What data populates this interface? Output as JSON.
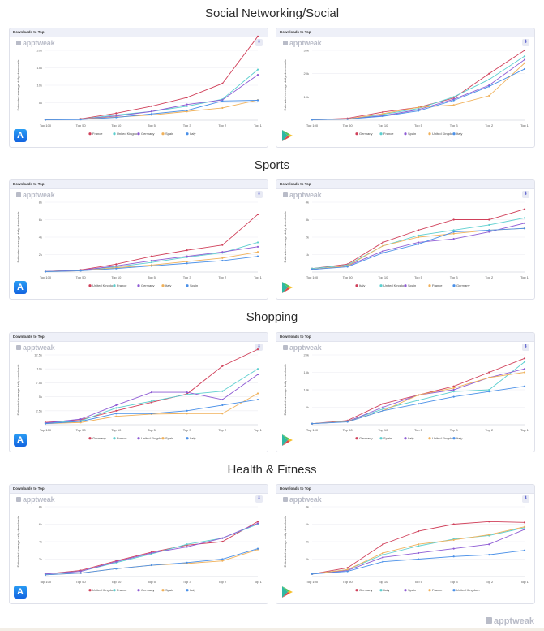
{
  "header_label": "Downloads to Top",
  "brand": "apptweak",
  "footer_brand": "apptweak",
  "y_label": "Estimated average daily downloads",
  "categories": [
    "Top 100",
    "Top 50",
    "Top 10",
    "Top 5",
    "Top 3",
    "Top 2",
    "Top 1"
  ],
  "colors": {
    "red": "#d0405a",
    "teal": "#5ccfcf",
    "purple": "#8e5bd4",
    "orange": "#f0b15a",
    "blue": "#4a90e8"
  },
  "sections": [
    {
      "title": "Social Networking/Social"
    },
    {
      "title": "Sports"
    },
    {
      "title": "Shopping"
    },
    {
      "title": "Health & Fitness"
    }
  ],
  "chart_data": [
    {
      "type": "line",
      "store": "App Store",
      "title": "Downloads to Top",
      "ylabel": "Estimated average daily downloads",
      "yticks": [
        "5k",
        "10k",
        "15k",
        "20k"
      ],
      "ymax": 20000,
      "categories": [
        "Top 100",
        "Top 50",
        "Top 10",
        "Top 5",
        "Top 3",
        "Top 2",
        "Top 1"
      ],
      "series": [
        {
          "name": "France",
          "color": "red",
          "values": [
            200,
            400,
            2000,
            4000,
            6500,
            10500,
            24000
          ]
        },
        {
          "name": "United Kingdom",
          "color": "teal",
          "values": [
            200,
            300,
            1500,
            2500,
            4000,
            6000,
            14500
          ]
        },
        {
          "name": "Germany",
          "color": "purple",
          "values": [
            200,
            300,
            1200,
            2500,
            4500,
            5800,
            13000
          ]
        },
        {
          "name": "Spain",
          "color": "orange",
          "values": [
            100,
            300,
            900,
            1500,
            2500,
            3500,
            5800
          ]
        },
        {
          "name": "Italy",
          "color": "blue",
          "values": [
            100,
            200,
            800,
            1800,
            2800,
            5500,
            5700
          ]
        }
      ]
    },
    {
      "type": "line",
      "store": "Google Play",
      "title": "Downloads to Top",
      "ylabel": "Estimated average daily downloads",
      "yticks": [
        "10k",
        "20k",
        "30k"
      ],
      "ymax": 30000,
      "categories": [
        "Top 100",
        "Top 50",
        "Top 10",
        "Top 5",
        "Top 3",
        "Top 2",
        "Top 1"
      ],
      "series": [
        {
          "name": "Germany",
          "color": "red",
          "values": [
            200,
            800,
            3500,
            5500,
            9500,
            20000,
            30000
          ]
        },
        {
          "name": "France",
          "color": "teal",
          "values": [
            200,
            500,
            2500,
            5000,
            10000,
            17500,
            27500
          ]
        },
        {
          "name": "Spain",
          "color": "purple",
          "values": [
            200,
            500,
            2000,
            4500,
            9000,
            15000,
            26000
          ]
        },
        {
          "name": "United Kingdom",
          "color": "orange",
          "values": [
            200,
            500,
            2800,
            5500,
            6500,
            10500,
            24500
          ]
        },
        {
          "name": "Italy",
          "color": "blue",
          "values": [
            200,
            500,
            1700,
            4000,
            8500,
            14500,
            22000
          ]
        }
      ]
    },
    {
      "type": "line",
      "store": "App Store",
      "title": "Downloads to Top",
      "ylabel": "Estimated average daily downloads",
      "yticks": [
        "2k",
        "4k",
        "6k",
        "8k"
      ],
      "ymax": 8000,
      "categories": [
        "Top 100",
        "Top 50",
        "Top 10",
        "Top 5",
        "Top 3",
        "Top 2",
        "Top 1"
      ],
      "series": [
        {
          "name": "United Kingdom",
          "color": "red",
          "values": [
            60,
            250,
            900,
            1800,
            2500,
            3100,
            6600
          ]
        },
        {
          "name": "France",
          "color": "teal",
          "values": [
            60,
            200,
            600,
            1100,
            1700,
            2200,
            3400
          ]
        },
        {
          "name": "Germany",
          "color": "purple",
          "values": [
            60,
            200,
            700,
            1300,
            1800,
            2300,
            2900
          ]
        },
        {
          "name": "Italy",
          "color": "orange",
          "values": [
            40,
            150,
            500,
            800,
            1200,
            1600,
            2300
          ]
        },
        {
          "name": "Spain",
          "color": "blue",
          "values": [
            40,
            150,
            400,
            700,
            1000,
            1300,
            1800
          ]
        }
      ]
    },
    {
      "type": "line",
      "store": "Google Play",
      "title": "Downloads to Top",
      "ylabel": "Estimated average daily downloads",
      "yticks": [
        "1k",
        "2k",
        "3k",
        "4k"
      ],
      "ymax": 4000,
      "categories": [
        "Top 100",
        "Top 50",
        "Top 10",
        "Top 5",
        "Top 3",
        "Top 2",
        "Top 1"
      ],
      "series": [
        {
          "name": "Italy",
          "color": "red",
          "values": [
            200,
            450,
            1700,
            2400,
            3000,
            3000,
            3600
          ]
        },
        {
          "name": "United Kingdom",
          "color": "teal",
          "values": [
            200,
            400,
            1500,
            2100,
            2400,
            2700,
            3100
          ]
        },
        {
          "name": "Spain",
          "color": "purple",
          "values": [
            150,
            350,
            1200,
            1700,
            1900,
            2300,
            2800
          ]
        },
        {
          "name": "France",
          "color": "orange",
          "values": [
            150,
            350,
            1500,
            2000,
            2200,
            2400,
            2500
          ]
        },
        {
          "name": "Germany",
          "color": "blue",
          "values": [
            150,
            300,
            1100,
            1600,
            2300,
            2400,
            2500
          ]
        }
      ]
    },
    {
      "type": "line",
      "store": "App Store",
      "title": "Downloads to Top",
      "ylabel": "Estimated average daily downloads",
      "yticks": [
        "2.5k",
        "5k",
        "7.5k",
        "10k",
        "12.5k"
      ],
      "ymax": 12500,
      "categories": [
        "Top 100",
        "Top 50",
        "Top 10",
        "Top 5",
        "Top 3",
        "Top 2",
        "Top 1"
      ],
      "series": [
        {
          "name": "Germany",
          "color": "red",
          "values": [
            400,
            900,
            2500,
            4000,
            5500,
            10500,
            13500
          ]
        },
        {
          "name": "France",
          "color": "teal",
          "values": [
            300,
            700,
            3000,
            4200,
            5400,
            6000,
            10000
          ]
        },
        {
          "name": "United Kingdom",
          "color": "purple",
          "values": [
            300,
            1000,
            3500,
            5800,
            5800,
            4500,
            9000
          ]
        },
        {
          "name": "Spain",
          "color": "orange",
          "values": [
            200,
            400,
            1500,
            1900,
            2000,
            2000,
            5600
          ]
        },
        {
          "name": "Italy",
          "color": "blue",
          "values": [
            200,
            600,
            2000,
            2000,
            2500,
            3500,
            4500
          ]
        }
      ]
    },
    {
      "type": "line",
      "store": "Google Play",
      "title": "Downloads to Top",
      "ylabel": "Estimated average daily downloads",
      "yticks": [
        "5k",
        "10k",
        "15k",
        "20k"
      ],
      "ymax": 20000,
      "categories": [
        "Top 100",
        "Top 50",
        "Top 10",
        "Top 5",
        "Top 3",
        "Top 2",
        "Top 1"
      ],
      "series": [
        {
          "name": "Germany",
          "color": "red",
          "values": [
            300,
            1200,
            6000,
            8500,
            11000,
            15000,
            19000
          ]
        },
        {
          "name": "Spain",
          "color": "teal",
          "values": [
            300,
            1000,
            4500,
            7000,
            9500,
            10000,
            18000
          ]
        },
        {
          "name": "Italy",
          "color": "purple",
          "values": [
            300,
            900,
            5000,
            8500,
            10000,
            13500,
            16000
          ]
        },
        {
          "name": "United Kingdom",
          "color": "orange",
          "values": [
            300,
            900,
            4000,
            8500,
            10500,
            13500,
            15000
          ]
        },
        {
          "name": "Italy",
          "color": "blue",
          "values": [
            300,
            800,
            4000,
            6000,
            8000,
            9500,
            11000
          ]
        }
      ]
    },
    {
      "type": "line",
      "store": "App Store",
      "title": "Downloads to Top",
      "ylabel": "Estimated average daily downloads",
      "yticks": [
        "2k",
        "4k",
        "6k",
        "8k"
      ],
      "ymax": 8000,
      "categories": [
        "Top 100",
        "Top 50",
        "Top 10",
        "Top 5",
        "Top 3",
        "Top 2",
        "Top 1"
      ],
      "series": [
        {
          "name": "United Kingdom",
          "color": "red",
          "values": [
            300,
            700,
            1800,
            2800,
            3600,
            4000,
            6300
          ]
        },
        {
          "name": "France",
          "color": "teal",
          "values": [
            300,
            600,
            1600,
            2600,
            3700,
            4400,
            6000
          ]
        },
        {
          "name": "Germany",
          "color": "purple",
          "values": [
            300,
            600,
            1700,
            2700,
            3400,
            4400,
            6100
          ]
        },
        {
          "name": "Spain",
          "color": "orange",
          "values": [
            200,
            400,
            900,
            1300,
            1500,
            1800,
            3100
          ]
        },
        {
          "name": "Italy",
          "color": "blue",
          "values": [
            200,
            400,
            900,
            1300,
            1600,
            2000,
            3200
          ]
        }
      ]
    },
    {
      "type": "line",
      "store": "Google Play",
      "title": "Downloads to Top",
      "ylabel": "Estimated average daily downloads",
      "yticks": [
        "2k",
        "4k",
        "6k",
        "8k"
      ],
      "ymax": 8000,
      "categories": [
        "Top 100",
        "Top 50",
        "Top 10",
        "Top 5",
        "Top 3",
        "Top 2",
        "Top 1"
      ],
      "series": [
        {
          "name": "Germany",
          "color": "red",
          "values": [
            300,
            1000,
            3700,
            5200,
            6000,
            6300,
            6200
          ]
        },
        {
          "name": "Italy",
          "color": "teal",
          "values": [
            300,
            800,
            2500,
            3500,
            4300,
            4700,
            5600
          ]
        },
        {
          "name": "Spain",
          "color": "purple",
          "values": [
            300,
            700,
            2200,
            2700,
            3200,
            3700,
            5400
          ]
        },
        {
          "name": "France",
          "color": "orange",
          "values": [
            300,
            800,
            2700,
            3700,
            4200,
            4800,
            5700
          ]
        },
        {
          "name": "United Kingdom",
          "color": "blue",
          "values": [
            300,
            600,
            1700,
            2000,
            2300,
            2500,
            3000
          ]
        }
      ]
    }
  ]
}
